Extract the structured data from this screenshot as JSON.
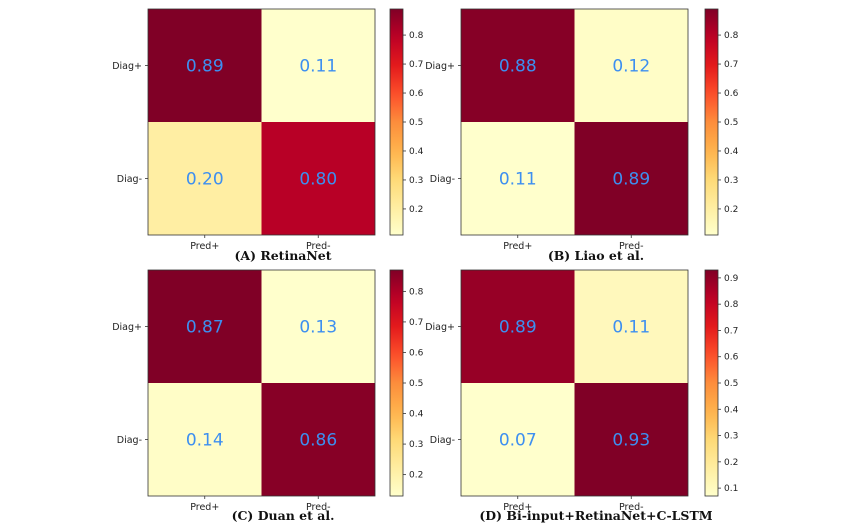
{
  "chart_data": [
    {
      "type": "heatmap",
      "caption": "(A) RetinaNet",
      "rows": [
        "Diag+",
        "Diag-"
      ],
      "columns": [
        "Pred+",
        "Pred-"
      ],
      "values": [
        [
          0.89,
          0.11
        ],
        [
          0.2,
          0.8
        ]
      ],
      "labels": [
        [
          "0.89",
          "0.11"
        ],
        [
          "0.20",
          "0.80"
        ]
      ],
      "colorbar": {
        "range": [
          0.11,
          0.89
        ],
        "ticks": [
          "0.2",
          "0.3",
          "0.4",
          "0.5",
          "0.6",
          "0.7",
          "0.8"
        ]
      }
    },
    {
      "type": "heatmap",
      "caption": "(B) Liao et al.",
      "rows": [
        "Diag+",
        "Diag-"
      ],
      "columns": [
        "Pred+",
        "Pred-"
      ],
      "values": [
        [
          0.88,
          0.12
        ],
        [
          0.11,
          0.89
        ]
      ],
      "labels": [
        [
          "0.88",
          "0.12"
        ],
        [
          "0.11",
          "0.89"
        ]
      ],
      "colorbar": {
        "range": [
          0.11,
          0.89
        ],
        "ticks": [
          "0.2",
          "0.3",
          "0.4",
          "0.5",
          "0.6",
          "0.7",
          "0.8"
        ]
      }
    },
    {
      "type": "heatmap",
      "caption": "(C) Duan et al.",
      "rows": [
        "Diag+",
        "Diag-"
      ],
      "columns": [
        "Pred+",
        "Pred-"
      ],
      "values": [
        [
          0.87,
          0.13
        ],
        [
          0.14,
          0.86
        ]
      ],
      "labels": [
        [
          "0.87",
          "0.13"
        ],
        [
          "0.14",
          "0.86"
        ]
      ],
      "colorbar": {
        "range": [
          0.13,
          0.87
        ],
        "ticks": [
          "0.2",
          "0.3",
          "0.4",
          "0.5",
          "0.6",
          "0.7",
          "0.8"
        ]
      }
    },
    {
      "type": "heatmap",
      "caption": "(D) Bi-input+RetinaNet+C-LSTM",
      "rows": [
        "Diag+",
        "Diag-"
      ],
      "columns": [
        "Pred+",
        "Pred-"
      ],
      "values": [
        [
          0.89,
          0.11
        ],
        [
          0.07,
          0.93
        ]
      ],
      "labels": [
        [
          "0.89",
          "0.11"
        ],
        [
          "0.07",
          "0.93"
        ]
      ],
      "colorbar": {
        "range": [
          0.07,
          0.93
        ],
        "ticks": [
          "0.1",
          "0.2",
          "0.3",
          "0.4",
          "0.5",
          "0.6",
          "0.7",
          "0.8",
          "0.9"
        ]
      }
    }
  ],
  "colormap": "YlOrRd",
  "colors": {
    "cell_text": "#3d8ff0"
  }
}
